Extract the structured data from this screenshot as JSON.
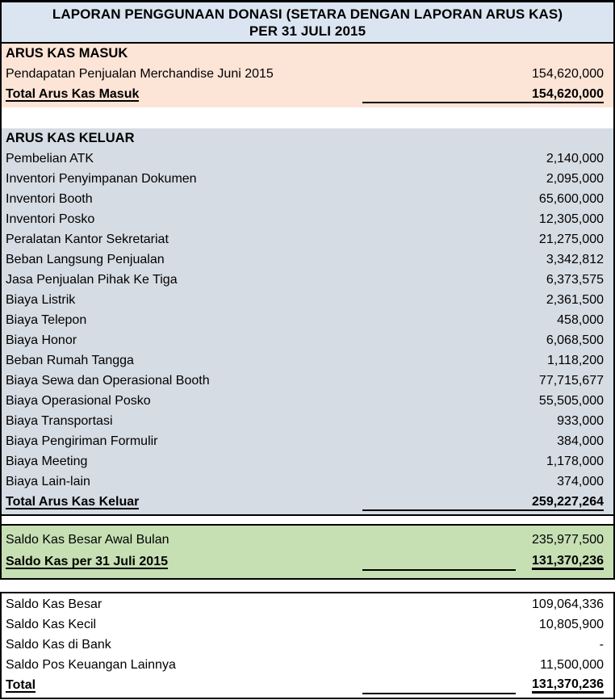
{
  "title": {
    "line1": "LAPORAN PENGGUNAAN DONASI (SETARA DENGAN LAPORAN ARUS KAS)",
    "line2": "PER 31 JULI 2015"
  },
  "colors": {
    "title_bg": "#dbe5f1",
    "masuk_bg": "#fce4d6",
    "keluar_bg": "#d6dce4",
    "saldo_bg": "#c6e0b4",
    "border": "#000000"
  },
  "masuk": {
    "header": "ARUS KAS MASUK",
    "rows": [
      {
        "label": "Pendapatan Penjualan Merchandise Juni 2015",
        "value": "154,620,000"
      }
    ],
    "total": {
      "label": "Total Arus Kas Masuk",
      "value": "154,620,000"
    }
  },
  "keluar": {
    "header": "ARUS KAS KELUAR",
    "rows": [
      {
        "label": "Pembelian ATK",
        "value": "2,140,000"
      },
      {
        "label": "Inventori Penyimpanan Dokumen",
        "value": "2,095,000"
      },
      {
        "label": "Inventori Booth",
        "value": "65,600,000"
      },
      {
        "label": "Inventori Posko",
        "value": "12,305,000"
      },
      {
        "label": "Peralatan Kantor Sekretariat",
        "value": "21,275,000"
      },
      {
        "label": "Beban Langsung Penjualan",
        "value": "3,342,812"
      },
      {
        "label": "Jasa Penjualan Pihak Ke Tiga",
        "value": "6,373,575"
      },
      {
        "label": "Biaya Listrik",
        "value": "2,361,500"
      },
      {
        "label": "Biaya Telepon",
        "value": "458,000"
      },
      {
        "label": "Biaya Honor",
        "value": "6,068,500"
      },
      {
        "label": "Beban Rumah Tangga",
        "value": "1,118,200"
      },
      {
        "label": "Biaya Sewa dan Operasional Booth",
        "value": "77,715,677"
      },
      {
        "label": "Biaya Operasional Posko",
        "value": "55,505,000"
      },
      {
        "label": "Biaya Transportasi",
        "value": "933,000"
      },
      {
        "label": "Biaya Pengiriman Formulir",
        "value": "384,000"
      },
      {
        "label": "Biaya Meeting",
        "value": "1,178,000"
      },
      {
        "label": "Biaya Lain-lain",
        "value": "374,000"
      }
    ],
    "total": {
      "label": "Total Arus Kas Keluar",
      "value": "259,227,264"
    }
  },
  "saldo": {
    "rows": [
      {
        "label": "Saldo Kas Besar Awal Bulan",
        "value": "235,977,500"
      }
    ],
    "total": {
      "label": "Saldo Kas per 31 Juli 2015",
      "value": "131,370,236"
    }
  },
  "rincian": {
    "rows": [
      {
        "label": "Saldo Kas Besar",
        "value": "109,064,336"
      },
      {
        "label": "Saldo Kas Kecil",
        "value": "10,805,900"
      },
      {
        "label": "Saldo Kas di Bank",
        "value": "-"
      },
      {
        "label": "Saldo Pos Keuangan Lainnya",
        "value": "11,500,000"
      }
    ],
    "total": {
      "label": "Total",
      "value": "131,370,236"
    }
  }
}
